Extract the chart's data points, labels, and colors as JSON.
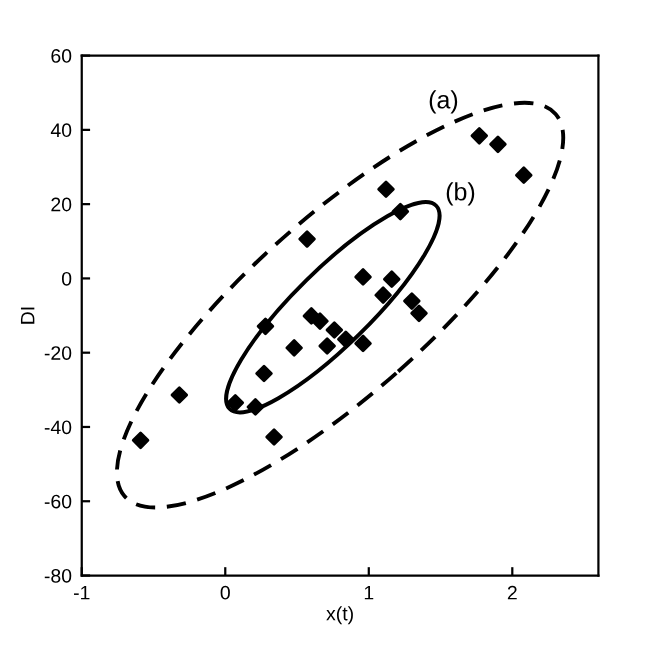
{
  "chart_data": {
    "type": "scatter",
    "xlabel": "x(t)",
    "ylabel": "DI",
    "xlim": [
      -1,
      2.6
    ],
    "ylim": [
      -80,
      60
    ],
    "xticks": [
      -1,
      0,
      1,
      2
    ],
    "yticks": [
      -80,
      -60,
      -40,
      -20,
      0,
      20,
      40,
      60
    ],
    "grid": false,
    "legend": false,
    "series": [
      {
        "color": "#000000",
        "marker": "diamond",
        "x": [
          1.77,
          1.9,
          2.08,
          1.12,
          1.22,
          0.57,
          0.96,
          1.16,
          1.1,
          1.3,
          1.35,
          0.28,
          0.6,
          0.66,
          0.76,
          0.84,
          0.96,
          0.71,
          0.48,
          0.27,
          0.07,
          0.21,
          0.34,
          -0.32,
          -0.59
        ],
        "values": [
          38.4,
          36.1,
          27.8,
          24,
          18,
          10.6,
          0.4,
          -0.2,
          -4.5,
          -6.1,
          -9.4,
          -12.9,
          -10.1,
          -11.5,
          -13.9,
          -16.4,
          -17.5,
          -18.2,
          -18.7,
          -25.6,
          -33.5,
          -34.6,
          -42.7,
          -31.4,
          -43.6
        ]
      }
    ],
    "annotations": [
      "(a)",
      "(b)"
    ]
  }
}
